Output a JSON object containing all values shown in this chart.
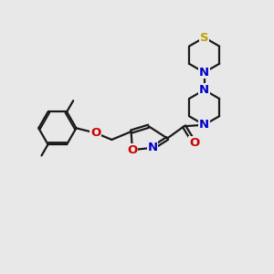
{
  "bg_color": "#e8e8e8",
  "bond_color": "#1a1a1a",
  "S_color": "#b8a000",
  "N_color": "#0000cc",
  "O_color": "#cc0000",
  "line_width": 1.6,
  "font_size_atom": 8.5,
  "xlim": [
    0,
    10
  ],
  "ylim": [
    0,
    10
  ]
}
